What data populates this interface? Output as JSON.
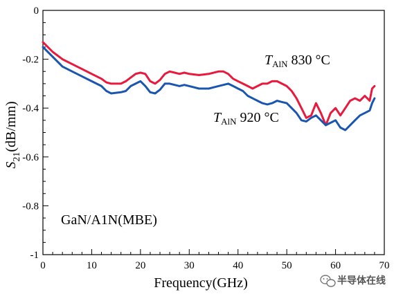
{
  "chart_data": {
    "type": "line",
    "xlabel": "Frequency(GHz)",
    "ylabel": "S21(dB/mm)",
    "xlim": [
      0,
      70
    ],
    "ylim": [
      -1,
      0
    ],
    "x_ticks": [
      "0",
      "10",
      "20",
      "30",
      "40",
      "50",
      "60",
      "70"
    ],
    "y_ticks": [
      "0",
      "-0.2",
      "-0.4",
      "-0.6",
      "-0.8",
      "-1"
    ],
    "y_tick_values": [
      0,
      -0.2,
      -0.4,
      -0.6,
      -0.8,
      -1
    ],
    "annotations": [
      {
        "text": "GaN/A1N(MBE)"
      }
    ],
    "series": [
      {
        "name": "TAlN 830 °C",
        "color": "#e8193c",
        "x": [
          0,
          2,
          4,
          6,
          8,
          10,
          12,
          13,
          14,
          16,
          17,
          18,
          19,
          20,
          21,
          22,
          23,
          24,
          25,
          26,
          27,
          28,
          29,
          30,
          32,
          34,
          36,
          37,
          38,
          39,
          40,
          41,
          42,
          43,
          44,
          45,
          46,
          47,
          48,
          49,
          50,
          51,
          52,
          53,
          54,
          55,
          56,
          57,
          58,
          59,
          60,
          61,
          62,
          63,
          64,
          65,
          66,
          67,
          67.5,
          68
        ],
        "y": [
          -0.13,
          -0.17,
          -0.2,
          -0.22,
          -0.24,
          -0.26,
          -0.28,
          -0.295,
          -0.3,
          -0.3,
          -0.29,
          -0.275,
          -0.26,
          -0.255,
          -0.26,
          -0.29,
          -0.3,
          -0.285,
          -0.26,
          -0.25,
          -0.255,
          -0.26,
          -0.255,
          -0.26,
          -0.265,
          -0.26,
          -0.25,
          -0.25,
          -0.26,
          -0.28,
          -0.29,
          -0.3,
          -0.31,
          -0.32,
          -0.31,
          -0.3,
          -0.3,
          -0.29,
          -0.29,
          -0.3,
          -0.31,
          -0.33,
          -0.36,
          -0.4,
          -0.44,
          -0.43,
          -0.38,
          -0.42,
          -0.47,
          -0.42,
          -0.4,
          -0.43,
          -0.4,
          -0.37,
          -0.36,
          -0.37,
          -0.35,
          -0.37,
          -0.32,
          -0.31
        ]
      },
      {
        "name": "TAlN 920 °C",
        "color": "#1a55b0",
        "x": [
          0,
          2,
          4,
          6,
          8,
          10,
          12,
          13,
          14,
          16,
          17,
          18,
          19,
          20,
          21,
          22,
          23,
          24,
          25,
          26,
          27,
          28,
          29,
          30,
          32,
          34,
          36,
          37,
          38,
          39,
          40,
          41,
          42,
          43,
          44,
          45,
          46,
          47,
          48,
          49,
          50,
          51,
          52,
          53,
          54,
          55,
          56,
          57,
          58,
          59,
          60,
          61,
          62,
          63,
          64,
          65,
          66,
          67,
          67.5,
          68
        ],
        "y": [
          -0.15,
          -0.19,
          -0.23,
          -0.25,
          -0.27,
          -0.29,
          -0.31,
          -0.33,
          -0.34,
          -0.335,
          -0.33,
          -0.31,
          -0.3,
          -0.29,
          -0.31,
          -0.335,
          -0.34,
          -0.325,
          -0.3,
          -0.3,
          -0.305,
          -0.31,
          -0.305,
          -0.31,
          -0.32,
          -0.32,
          -0.31,
          -0.305,
          -0.3,
          -0.31,
          -0.32,
          -0.33,
          -0.35,
          -0.36,
          -0.37,
          -0.38,
          -0.385,
          -0.38,
          -0.37,
          -0.375,
          -0.38,
          -0.4,
          -0.42,
          -0.45,
          -0.455,
          -0.44,
          -0.43,
          -0.45,
          -0.47,
          -0.46,
          -0.45,
          -0.48,
          -0.49,
          -0.47,
          -0.45,
          -0.43,
          -0.42,
          -0.41,
          -0.38,
          -0.36
        ]
      }
    ],
    "grid": false
  },
  "labels": {
    "xlabel": "Frequency(GHz)",
    "ylabel_main": "S",
    "ylabel_sub": "21",
    "ylabel_rest": "(dB/mm)",
    "annot_830_T": "T",
    "annot_830_sub": "AlN",
    "annot_830_rest": " 830 °C",
    "annot_920_T": "T",
    "annot_920_sub": "AlN",
    "annot_920_rest": " 920 °C",
    "sample": "GaN/A1N(MBE)",
    "watermark": "半导体在线"
  },
  "watermark_icon": "wechat-icon"
}
